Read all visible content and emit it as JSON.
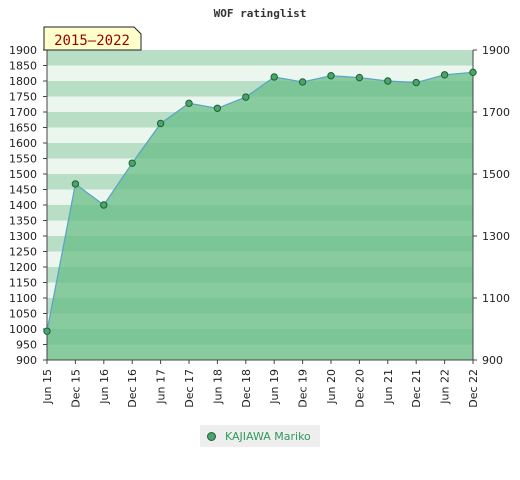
{
  "chart_data": {
    "type": "area",
    "title": "WOF ratinglist",
    "badge": "2015–2022",
    "categories": [
      "Jun 15",
      "Dec 15",
      "Jun 16",
      "Dec 16",
      "Jun 17",
      "Dec 17",
      "Jun 18",
      "Dec 18",
      "Jun 19",
      "Dec 19",
      "Jun 20",
      "Dec 20",
      "Jun 21",
      "Dec 21",
      "Jun 22",
      "Dec 22"
    ],
    "series": [
      {
        "name": "KAJIAWA Mariko",
        "values": [
          993,
          1468,
          1400,
          1535,
          1663,
          1728,
          1712,
          1748,
          1813,
          1797,
          1817,
          1811,
          1800,
          1795,
          1820,
          1828
        ]
      }
    ],
    "ylim": [
      900,
      1900
    ],
    "y_ticks_left": [
      900,
      950,
      1000,
      1050,
      1100,
      1150,
      1200,
      1250,
      1300,
      1350,
      1400,
      1450,
      1500,
      1550,
      1600,
      1650,
      1700,
      1750,
      1800,
      1850,
      1900
    ],
    "y_ticks_right": [
      900,
      1100,
      1300,
      1500,
      1700,
      1900
    ],
    "grid": false,
    "legend_position": "bottom",
    "colors": {
      "area": "#7cc596",
      "line": "#5aa2c8",
      "marker": "#4aa56a",
      "marker_edge": "#1f5f33",
      "badge_bg": "#ffffcc",
      "badge_text": "#990000"
    }
  }
}
